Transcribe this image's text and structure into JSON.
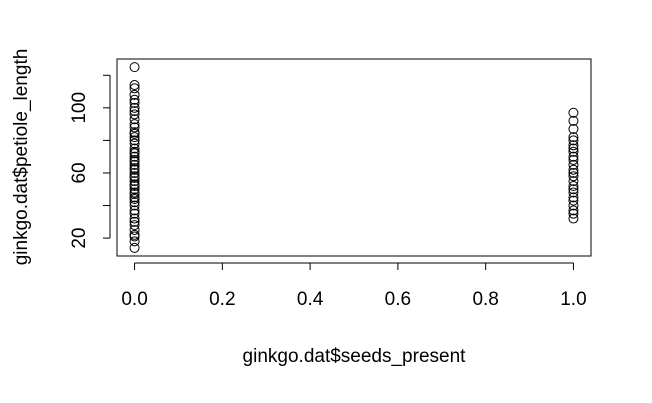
{
  "chart_data": {
    "type": "scatter",
    "xlabel": "ginkgo.dat$seeds_present",
    "ylabel": "ginkgo.dat$petiole_length",
    "x": [
      0,
      0,
      0,
      0,
      0,
      0,
      0,
      0,
      0,
      0,
      0,
      0,
      0,
      0,
      0,
      0,
      0,
      0,
      0,
      0,
      0,
      0,
      0,
      0,
      0,
      0,
      0,
      0,
      0,
      0,
      0,
      0,
      0,
      0,
      0,
      0,
      0,
      0,
      0,
      0,
      0,
      0,
      0,
      0,
      0,
      0,
      0,
      0,
      0,
      1,
      1,
      1,
      1,
      1,
      1,
      1,
      1,
      1,
      1,
      1,
      1,
      1,
      1,
      1,
      1,
      1,
      1,
      1,
      1,
      1,
      1,
      1,
      1
    ],
    "values": [
      14,
      18,
      21,
      22,
      25,
      28,
      30,
      32,
      35,
      37,
      40,
      42,
      44,
      45,
      47,
      48,
      50,
      52,
      53,
      55,
      57,
      58,
      60,
      62,
      63,
      65,
      67,
      68,
      70,
      72,
      73,
      75,
      78,
      80,
      82,
      84,
      85,
      88,
      90,
      93,
      96,
      98,
      100,
      103,
      105,
      108,
      112,
      114,
      125,
      32,
      35,
      37,
      40,
      43,
      45,
      48,
      50,
      52,
      55,
      58,
      60,
      62,
      65,
      68,
      70,
      73,
      75,
      77,
      80,
      82,
      87,
      92,
      97
    ],
    "xlim": [
      -0.04,
      1.04
    ],
    "ylim": [
      9,
      130
    ],
    "xticks": [
      {
        "value": 0,
        "label": "0.0"
      },
      0.2,
      0.4,
      0.6,
      0.8,
      {
        "value": 1,
        "label": "1.0"
      }
    ],
    "yticks": [
      20,
      60,
      100
    ],
    "y_unlabeled_ticks": [
      40,
      80,
      120
    ],
    "marker_color": "#000000"
  }
}
